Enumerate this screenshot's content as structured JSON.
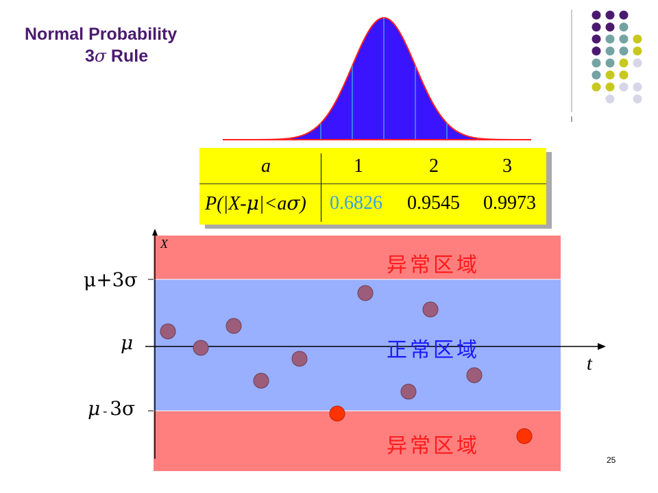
{
  "title": {
    "line1": "Normal Probability",
    "line2_prefix": "3",
    "line2_symbol": "σ",
    "line2_suffix": " Rule"
  },
  "table": {
    "row1_label": "a",
    "row2_label_parts": [
      "P(|X-",
      "μ",
      "|<a",
      "σ",
      ")"
    ],
    "a_values": [
      "1",
      "2",
      "3"
    ],
    "p_values": [
      "0.6826",
      "0.9545",
      "0.9973"
    ]
  },
  "diagram": {
    "upper_limit_label": "μ+3σ",
    "center_label": "μ",
    "lower_limit_label_mu": "μ",
    "lower_limit_label_minus": "-",
    "lower_limit_label_rest": "3σ",
    "x_axis_label": "t",
    "y_axis_label": "X",
    "abnormal_region_top": "异常区域",
    "normal_region": "正常区域",
    "abnormal_region_bottom": "异常区域"
  },
  "colors": {
    "title": "#4b1a6e",
    "curve_fill": "#3a14ff",
    "curve_edge": "#ff2020",
    "table_bg": "#ffff00",
    "abnormal_band": "#ff7f7f",
    "normal_band": "#99afff",
    "point_normal": "#9b5d7a",
    "point_outlier": "#ff3300",
    "decor_purple": "#4b1a6e",
    "decor_teal": "#74a3a3",
    "decor_olive": "#c8c820",
    "decor_lavender": "#d6d6e8"
  },
  "page_number": "25"
}
